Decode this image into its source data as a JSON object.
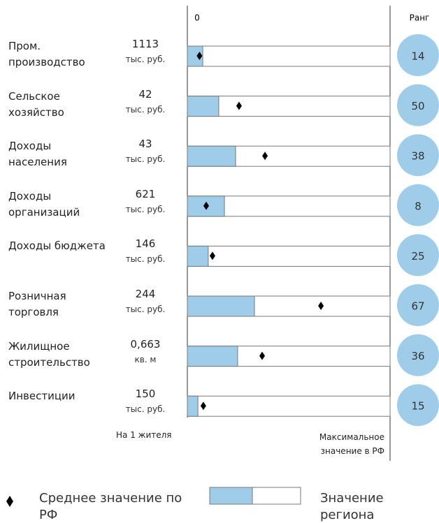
{
  "chart_data": {
    "type": "bullet",
    "axis_start_label": "0",
    "rank_label": "Ранг",
    "per_capita_label": "На 1 жителя",
    "axis_end_label": "Максимальное значение в РФ",
    "categories": [
      "Пром. производство",
      "Сельское хозяйство",
      "Доходы населения",
      "Доходы организаций",
      "Доходы бюджета",
      "Розничная торговля",
      "Жилищное строительство",
      "Инвестиции"
    ],
    "printed_values": [
      "1113",
      "42",
      "43",
      "621",
      "146",
      "244",
      "0,663",
      "150"
    ],
    "units": [
      "тыс. руб.",
      "тыс. руб.",
      "тыс. руб.",
      "тыс. руб.",
      "тыс. руб.",
      "тыс. руб.",
      "кв. м",
      "тыс. руб."
    ],
    "xlim": [
      0,
      100
    ],
    "series": [
      {
        "name": "Значение региона",
        "color": "#9fcde9",
        "values": [
          7.6,
          15.5,
          23.8,
          18.3,
          10.3,
          33.1,
          24.8,
          5.2
        ]
      },
      {
        "name": "Среднее значение по РФ",
        "color": "#000000",
        "values": [
          6,
          25.5,
          38.3,
          9.3,
          12.4,
          65.9,
          36.9,
          7.9
        ]
      }
    ],
    "ranks": [
      14,
      50,
      38,
      8,
      25,
      67,
      36,
      15
    ],
    "rank_color": "#9fcde9"
  }
}
